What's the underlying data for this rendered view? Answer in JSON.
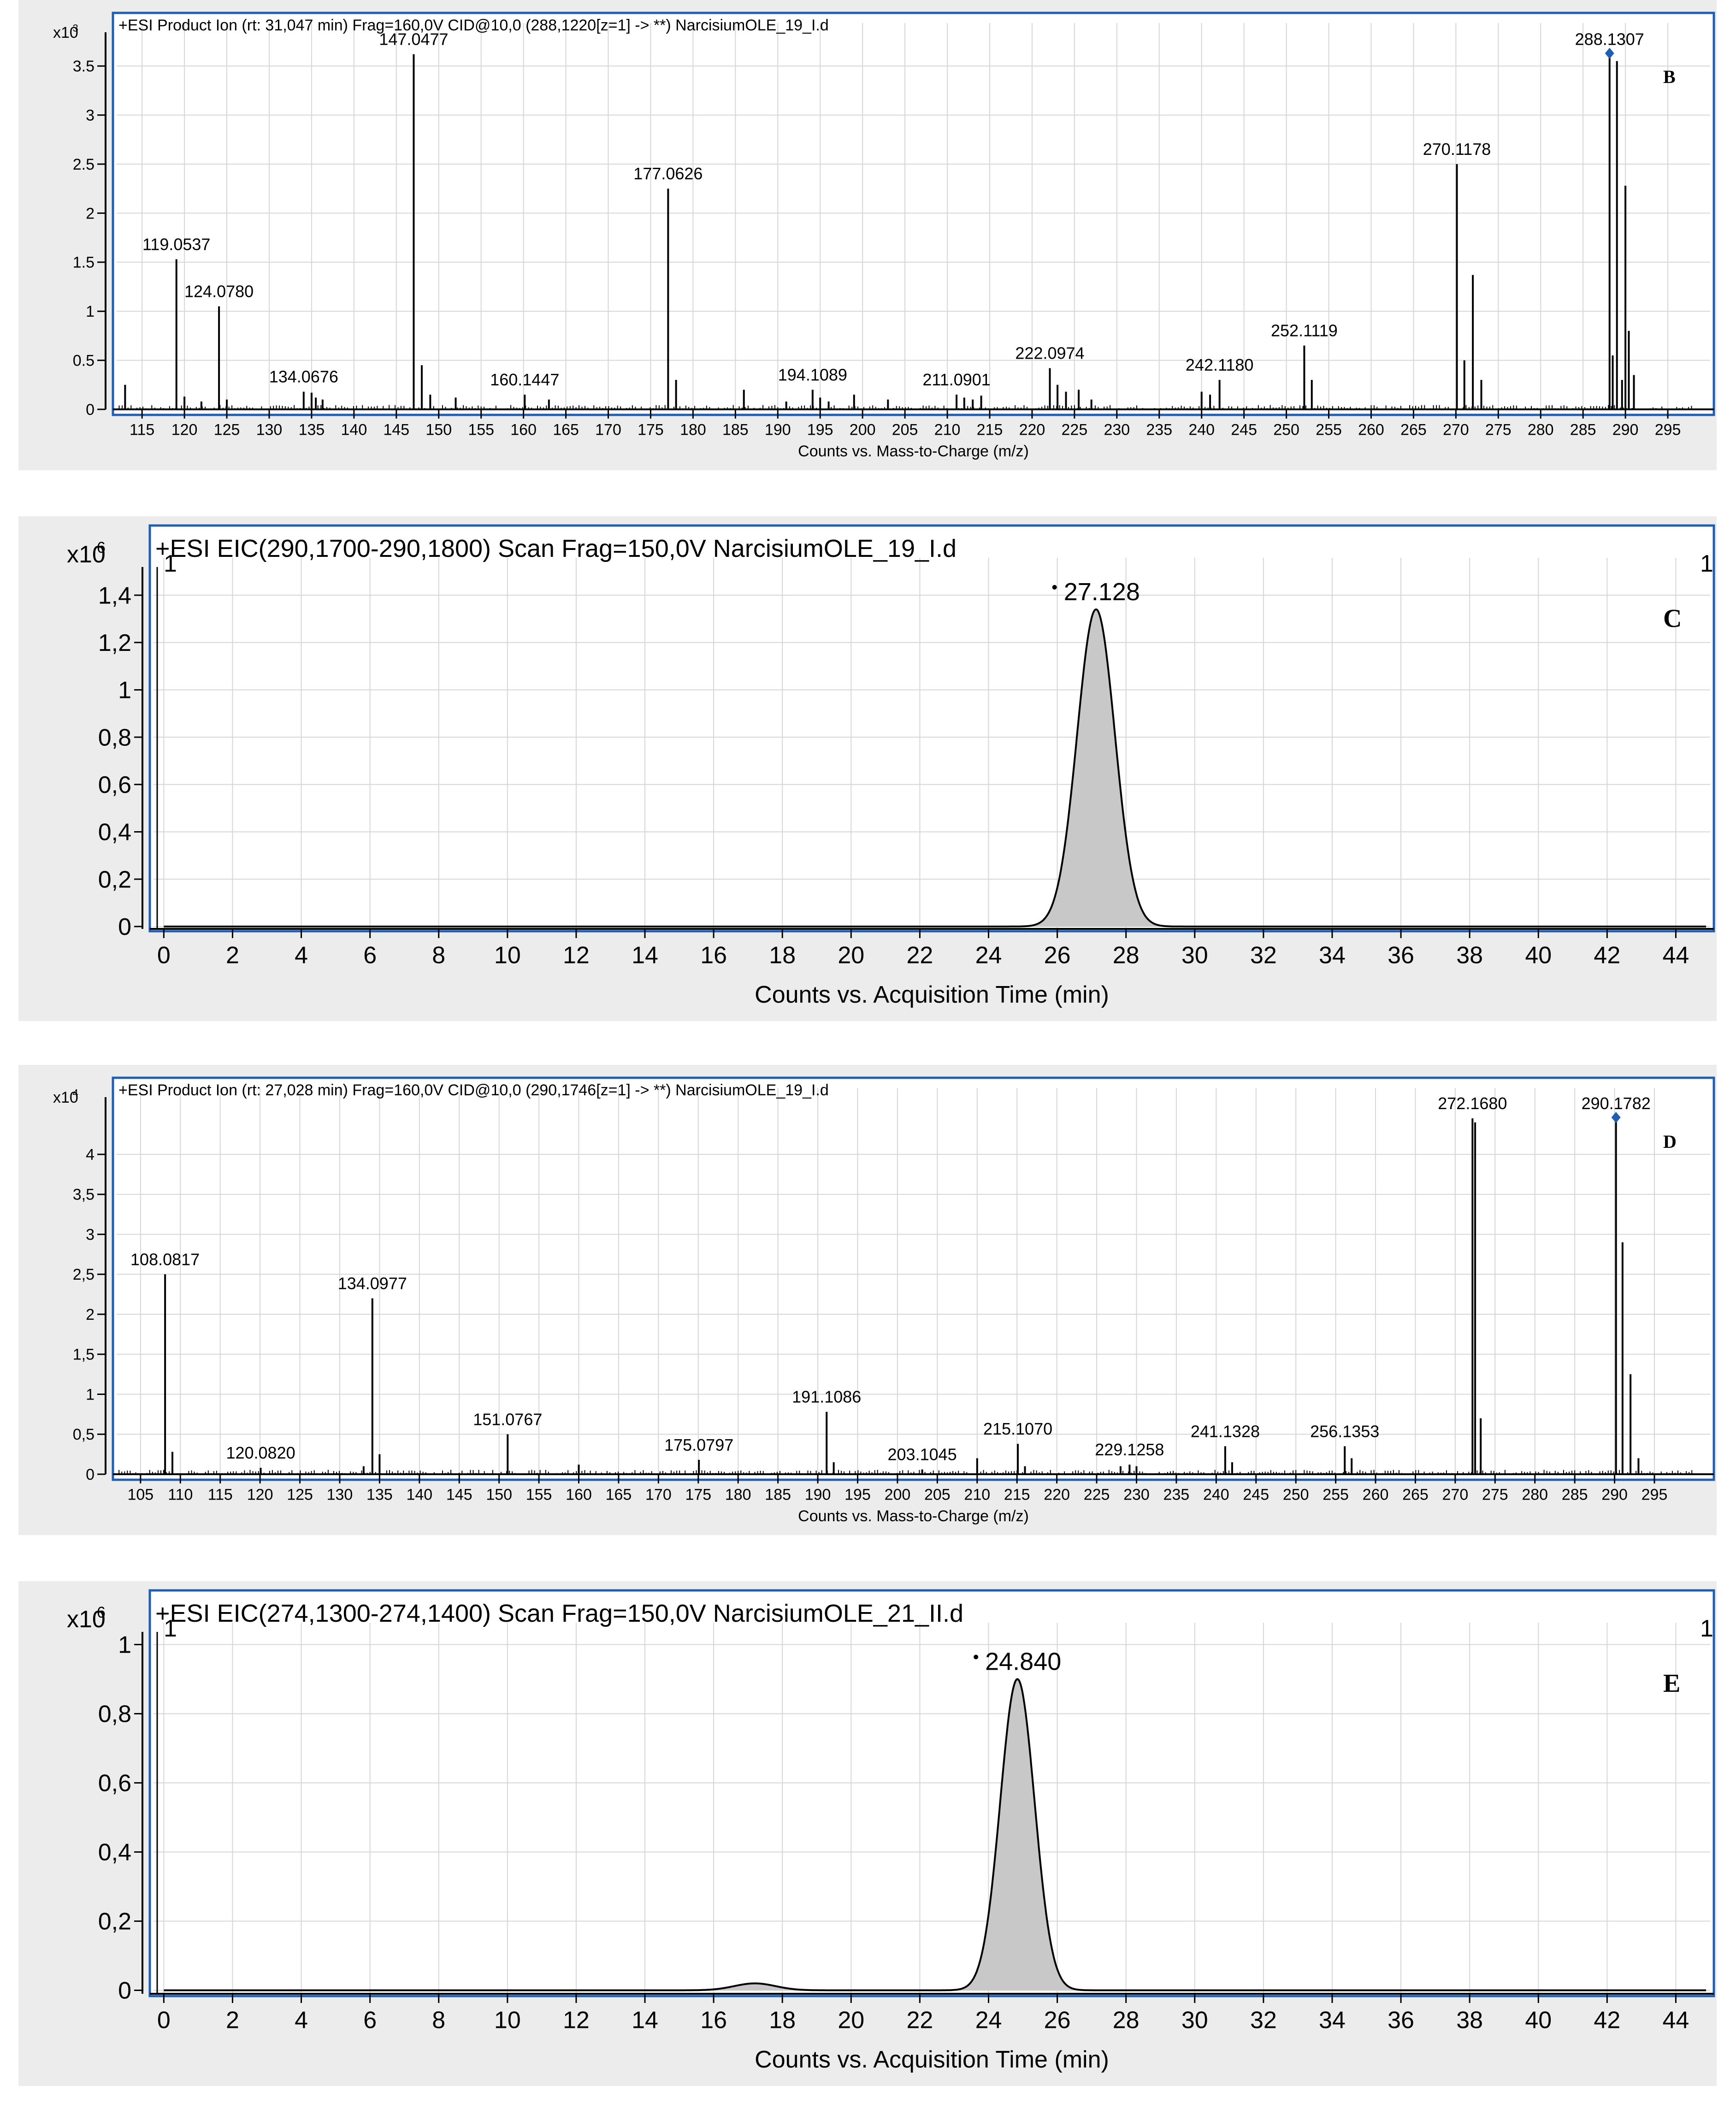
{
  "chart_data": [
    {
      "type": "bar",
      "panel_letter": "B",
      "title": "+ESI Product Ion (rt: 31,047 min) Frag=160,0V CID@10,0 (288,1220[z=1] -> **) NarcisiumOLE_19_I.d",
      "scale_label": "x10",
      "scale_exponent": "3",
      "xlabel": "Counts vs. Mass-to-Charge (m/z)",
      "xlim": [
        112,
        300
      ],
      "ylim": [
        0,
        3.75
      ],
      "xticks": [
        115,
        120,
        125,
        130,
        135,
        140,
        145,
        150,
        155,
        160,
        165,
        170,
        175,
        180,
        185,
        190,
        195,
        200,
        205,
        210,
        215,
        220,
        225,
        230,
        235,
        240,
        245,
        250,
        255,
        260,
        265,
        270,
        275,
        280,
        285,
        290,
        295
      ],
      "yticks": [
        0,
        0.5,
        1,
        1.5,
        2,
        2.5,
        3,
        3.5
      ],
      "ytick_labels": [
        "0",
        "0.5",
        "1",
        "1.5",
        "2",
        "2.5",
        "3",
        "3.5"
      ],
      "grid": true,
      "peaks": [
        {
          "x": 113.0,
          "y": 0.25
        },
        {
          "x": 119.0537,
          "y": 1.53,
          "label": "119.0537"
        },
        {
          "x": 120.0,
          "y": 0.13
        },
        {
          "x": 122.0,
          "y": 0.08
        },
        {
          "x": 124.078,
          "y": 1.05,
          "label": "124.0780"
        },
        {
          "x": 125.0,
          "y": 0.1
        },
        {
          "x": 134.0676,
          "y": 0.18,
          "label": "134.0676"
        },
        {
          "x": 135.0,
          "y": 0.17
        },
        {
          "x": 135.5,
          "y": 0.12
        },
        {
          "x": 136.3,
          "y": 0.1
        },
        {
          "x": 147.0477,
          "y": 3.62,
          "label": "147.0477"
        },
        {
          "x": 148.0,
          "y": 0.45
        },
        {
          "x": 149.0,
          "y": 0.15
        },
        {
          "x": 152.0,
          "y": 0.12
        },
        {
          "x": 160.1447,
          "y": 0.15,
          "label": "160.1447"
        },
        {
          "x": 163.0,
          "y": 0.1
        },
        {
          "x": 177.0626,
          "y": 2.25,
          "label": "177.0626"
        },
        {
          "x": 178.0,
          "y": 0.3
        },
        {
          "x": 186.0,
          "y": 0.2
        },
        {
          "x": 191.0,
          "y": 0.08
        },
        {
          "x": 194.1089,
          "y": 0.2,
          "label": "194.1089"
        },
        {
          "x": 195.0,
          "y": 0.12
        },
        {
          "x": 196.0,
          "y": 0.08
        },
        {
          "x": 199.0,
          "y": 0.15
        },
        {
          "x": 203.0,
          "y": 0.1
        },
        {
          "x": 211.0901,
          "y": 0.15,
          "label": "211.0901"
        },
        {
          "x": 212.0,
          "y": 0.12
        },
        {
          "x": 213.0,
          "y": 0.1
        },
        {
          "x": 214.0,
          "y": 0.14
        },
        {
          "x": 222.0974,
          "y": 0.42,
          "label": "222.0974"
        },
        {
          "x": 223.0,
          "y": 0.25
        },
        {
          "x": 224.0,
          "y": 0.18
        },
        {
          "x": 225.5,
          "y": 0.2
        },
        {
          "x": 227.0,
          "y": 0.1
        },
        {
          "x": 240.0,
          "y": 0.18
        },
        {
          "x": 241.0,
          "y": 0.15
        },
        {
          "x": 242.118,
          "y": 0.3,
          "label": "242.1180"
        },
        {
          "x": 252.1119,
          "y": 0.65,
          "label": "252.1119"
        },
        {
          "x": 253.0,
          "y": 0.3
        },
        {
          "x": 270.1178,
          "y": 2.5,
          "label": "270.1178"
        },
        {
          "x": 271.0,
          "y": 0.5
        },
        {
          "x": 272.0,
          "y": 1.37
        },
        {
          "x": 273.0,
          "y": 0.3
        },
        {
          "x": 288.1307,
          "y": 3.62,
          "label": "288.1307",
          "marker": true
        },
        {
          "x": 288.5,
          "y": 0.55
        },
        {
          "x": 289.0,
          "y": 3.55
        },
        {
          "x": 289.6,
          "y": 0.3
        },
        {
          "x": 290.0,
          "y": 2.28
        },
        {
          "x": 290.4,
          "y": 0.8
        },
        {
          "x": 291.0,
          "y": 0.35
        }
      ]
    },
    {
      "type": "area",
      "panel_letter": "C",
      "title": "+ESI EIC(290,1700-290,1800) Scan Frag=150,0V NarcisiumOLE_19_I.d",
      "scale_label": "x10",
      "scale_exponent": "6",
      "xlabel": "Counts vs. Acquisition Time (min)",
      "xlim": [
        -0.3,
        45
      ],
      "ylim": [
        -0.01,
        1.48
      ],
      "xticks": [
        0,
        2,
        4,
        6,
        8,
        10,
        12,
        14,
        16,
        18,
        20,
        22,
        24,
        26,
        28,
        30,
        32,
        34,
        36,
        38,
        40,
        42,
        44
      ],
      "yticks": [
        0,
        0.2,
        0.4,
        0.6,
        0.8,
        1,
        1.2,
        1.4
      ],
      "ytick_labels": [
        "0",
        "0,2",
        "0,4",
        "0,6",
        "0,8",
        "1",
        "1,2",
        "1,4"
      ],
      "grid": true,
      "corner_left": "1",
      "corner_right": "1",
      "peaks": [
        {
          "x": 27.128,
          "height": 1.34,
          "sigma": 0.55,
          "label": "27.128"
        }
      ],
      "minor_peaks": []
    },
    {
      "type": "bar",
      "panel_letter": "D",
      "title": "+ESI Product Ion (rt: 27,028 min) Frag=160,0V CID@10,0 (290,1746[z=1] -> **) NarcisiumOLE_19_I.d",
      "scale_label": "x10",
      "scale_exponent": "4",
      "xlabel": "Counts vs. Mass-to-Charge (m/z)",
      "xlim": [
        102,
        302
      ],
      "ylim": [
        0,
        4.6
      ],
      "xticks": [
        105,
        110,
        115,
        120,
        125,
        130,
        135,
        140,
        145,
        150,
        155,
        160,
        165,
        170,
        175,
        180,
        185,
        190,
        195,
        200,
        205,
        210,
        215,
        220,
        225,
        230,
        235,
        240,
        245,
        250,
        255,
        260,
        265,
        270,
        275,
        280,
        285,
        290,
        295
      ],
      "yticks": [
        0,
        0.5,
        1,
        1.5,
        2,
        2.5,
        3,
        3.5,
        4
      ],
      "ytick_labels": [
        "0",
        "0,5",
        "1",
        "1,5",
        "2",
        "2,5",
        "3",
        "3,5",
        "4"
      ],
      "grid": true,
      "peaks": [
        {
          "x": 108.0817,
          "y": 2.5,
          "label": "108.0817"
        },
        {
          "x": 109.0,
          "y": 0.28
        },
        {
          "x": 120.082,
          "y": 0.08,
          "label": "120.0820"
        },
        {
          "x": 133.0,
          "y": 0.1
        },
        {
          "x": 134.0977,
          "y": 2.2,
          "label": "134.0977"
        },
        {
          "x": 135.0,
          "y": 0.25
        },
        {
          "x": 151.0767,
          "y": 0.5,
          "label": "151.0767"
        },
        {
          "x": 160.0,
          "y": 0.12
        },
        {
          "x": 175.0797,
          "y": 0.18,
          "label": "175.0797"
        },
        {
          "x": 191.1086,
          "y": 0.78,
          "label": "191.1086"
        },
        {
          "x": 192.0,
          "y": 0.15
        },
        {
          "x": 203.1045,
          "y": 0.06,
          "label": "203.1045"
        },
        {
          "x": 210.0,
          "y": 0.2
        },
        {
          "x": 215.107,
          "y": 0.38,
          "label": "215.1070"
        },
        {
          "x": 216.0,
          "y": 0.1
        },
        {
          "x": 229.1258,
          "y": 0.12,
          "label": "229.1258"
        },
        {
          "x": 228.0,
          "y": 0.1
        },
        {
          "x": 230.0,
          "y": 0.1
        },
        {
          "x": 241.1328,
          "y": 0.35,
          "label": "241.1328"
        },
        {
          "x": 242.0,
          "y": 0.15
        },
        {
          "x": 256.1353,
          "y": 0.35,
          "label": "256.1353"
        },
        {
          "x": 257.0,
          "y": 0.2
        },
        {
          "x": 272.168,
          "y": 4.45,
          "label": "272.1680"
        },
        {
          "x": 272.5,
          "y": 4.4
        },
        {
          "x": 273.2,
          "y": 0.7
        },
        {
          "x": 290.1782,
          "y": 4.45,
          "label": "290.1782",
          "marker": true
        },
        {
          "x": 291.0,
          "y": 2.9
        },
        {
          "x": 292.0,
          "y": 1.25
        },
        {
          "x": 293.0,
          "y": 0.2
        }
      ]
    },
    {
      "type": "area",
      "panel_letter": "E",
      "title": "+ESI EIC(274,1300-274,1400) Scan Frag=150,0V NarcisiumOLE_21_II.d",
      "scale_label": "x10",
      "scale_exponent": "6",
      "xlabel": "Counts vs. Acquisition Time (min)",
      "xlim": [
        -0.3,
        45
      ],
      "ylim": [
        -0.01,
        1.01
      ],
      "xticks": [
        0,
        2,
        4,
        6,
        8,
        10,
        12,
        14,
        16,
        18,
        20,
        22,
        24,
        26,
        28,
        30,
        32,
        34,
        36,
        38,
        40,
        42,
        44
      ],
      "yticks": [
        0,
        0.2,
        0.4,
        0.6,
        0.8,
        1
      ],
      "ytick_labels": [
        "0",
        "0,2",
        "0,4",
        "0,6",
        "0,8",
        "1"
      ],
      "grid": true,
      "corner_left": "1",
      "corner_right": "1",
      "peaks": [
        {
          "x": 24.84,
          "height": 0.9,
          "sigma": 0.5,
          "label": "24.840"
        }
      ],
      "minor_peaks": [
        {
          "x": 17.2,
          "height": 0.02,
          "sigma": 0.6
        }
      ]
    }
  ]
}
